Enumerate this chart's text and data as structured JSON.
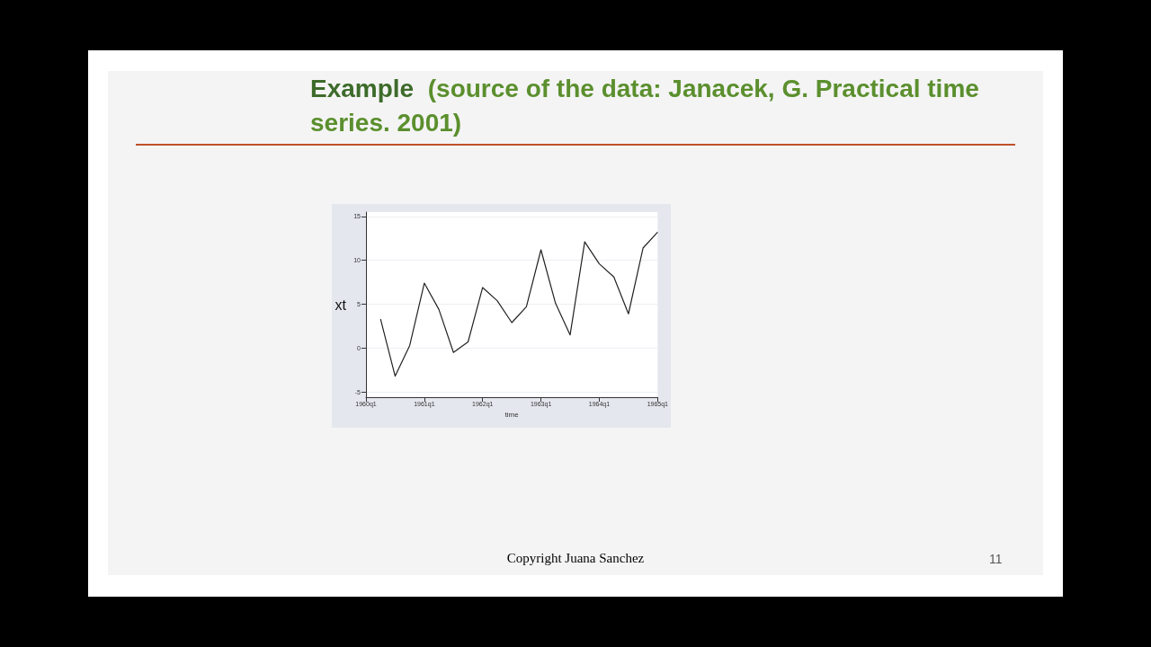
{
  "chart_data": {
    "type": "line",
    "title": "Example",
    "subtitle": "(source of the data: Janacek, G. Practical time series. 2001)",
    "xlabel": "time",
    "ylabel": "xt",
    "categories": [
      "1960q1",
      null,
      null,
      null,
      "1961q1",
      null,
      null,
      null,
      "1962q1",
      null,
      null,
      null,
      "1963q1",
      null,
      null,
      null,
      "1964q1",
      null,
      null,
      null,
      "1965q1"
    ],
    "series": [
      {
        "color": "#222222",
        "values": [
          null,
          3.3,
          -3.2,
          0.3,
          7.4,
          4.4,
          -0.5,
          0.7,
          6.9,
          5.4,
          2.9,
          4.7,
          11.2,
          5.1,
          1.5,
          12.1,
          9.6,
          8.1,
          3.9,
          11.4,
          13.2
        ]
      }
    ],
    "ylim": [
      -5.6,
      15.5
    ],
    "yticks": [
      -5,
      0,
      5,
      10,
      15
    ],
    "grid": "y",
    "marker": "none",
    "line_style": "solid",
    "annotations": [
      "Copyright Juana Sanchez",
      "11"
    ]
  }
}
